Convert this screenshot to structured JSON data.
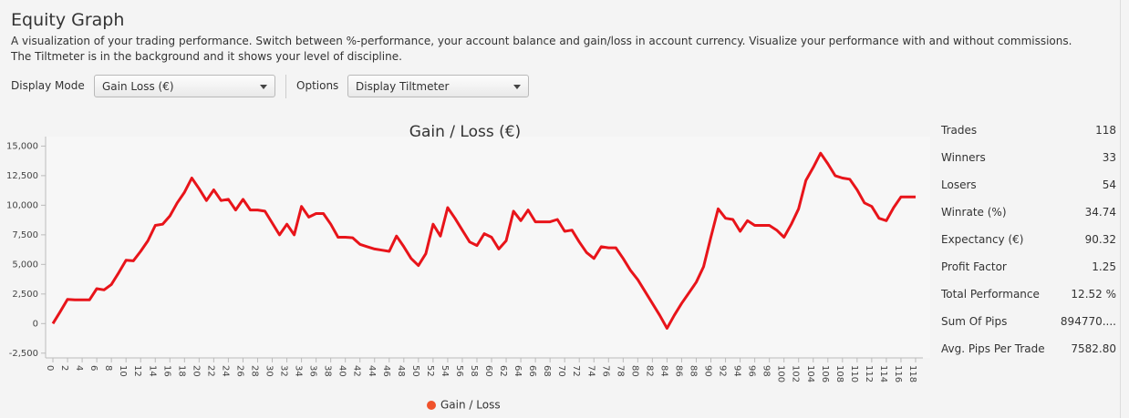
{
  "header": {
    "title": "Equity Graph",
    "description_lines": [
      "A visualization of your trading performance. Switch between %-performance, your account balance and gain/loss in account currency. Visualize your performance with and without commissions.",
      "The Tiltmeter is in the background and it shows your level of discipline."
    ]
  },
  "controls": {
    "display_mode_label": "Display Mode",
    "display_mode_value": "Gain Loss (€)",
    "options_label": "Options",
    "options_value": "Display Tiltmeter"
  },
  "chart_data": {
    "type": "line",
    "title": "Gain / Loss (€)",
    "grid": false,
    "legend": "bottom",
    "x": [
      0,
      1,
      2,
      3,
      4,
      5,
      6,
      7,
      8,
      9,
      10,
      11,
      12,
      13,
      14,
      15,
      16,
      17,
      18,
      19,
      20,
      21,
      22,
      23,
      24,
      25,
      26,
      27,
      28,
      29,
      30,
      31,
      32,
      33,
      34,
      35,
      36,
      37,
      38,
      39,
      40,
      41,
      42,
      43,
      44,
      45,
      46,
      47,
      48,
      49,
      50,
      51,
      52,
      53,
      54,
      55,
      56,
      57,
      58,
      59,
      60,
      61,
      62,
      63,
      64,
      65,
      66,
      67,
      68,
      69,
      70,
      71,
      72,
      73,
      74,
      75,
      76,
      77,
      78,
      79,
      80,
      81,
      82,
      83,
      84,
      85,
      86,
      87,
      88,
      89,
      90,
      91,
      92,
      93,
      94,
      95,
      96,
      97,
      98,
      99,
      100,
      101,
      102,
      103,
      104,
      105,
      106,
      107,
      108,
      109,
      110,
      111,
      112,
      113,
      114,
      115,
      116,
      117,
      118
    ],
    "series": [
      {
        "name": "Gain / Loss",
        "color": "#e8141a",
        "legend_color": "#f0522b",
        "values": [
          0,
          1000,
          2050,
          2000,
          2000,
          2000,
          2950,
          2850,
          3300,
          4300,
          5350,
          5300,
          6100,
          7000,
          8300,
          8400,
          9100,
          10200,
          11100,
          12300,
          11400,
          10400,
          11300,
          10400,
          10500,
          9600,
          10500,
          9600,
          9600,
          9500,
          8500,
          7500,
          8400,
          7500,
          9900,
          9000,
          9300,
          9300,
          8400,
          7300,
          7300,
          7250,
          6700,
          6500,
          6300,
          6200,
          6100,
          7400,
          6500,
          5500,
          4900,
          5900,
          8400,
          7400,
          9800,
          8900,
          7900,
          6900,
          6600,
          7600,
          7300,
          6300,
          7000,
          9500,
          8700,
          9600,
          8600,
          8600,
          8600,
          8800,
          7800,
          7900,
          6900,
          6000,
          5500,
          6500,
          6400,
          6400,
          5500,
          4500,
          3700,
          2700,
          1700,
          700,
          -400,
          700,
          1700,
          2600,
          3500,
          4800,
          7300,
          9700,
          8900,
          8800,
          7800,
          8700,
          8300,
          8300,
          8300,
          7900,
          7300,
          8400,
          9700,
          12100,
          13200,
          14400,
          13500,
          12500,
          12300,
          12200,
          11300,
          10200,
          9900,
          8900,
          8700,
          9800,
          10700,
          10700,
          10700
        ]
      }
    ],
    "xlim": [
      -1,
      119
    ],
    "xticks": [
      0,
      2,
      4,
      6,
      8,
      10,
      12,
      14,
      16,
      18,
      20,
      22,
      24,
      26,
      28,
      30,
      32,
      34,
      36,
      38,
      40,
      42,
      44,
      46,
      48,
      50,
      52,
      54,
      56,
      58,
      60,
      62,
      64,
      66,
      68,
      70,
      72,
      74,
      76,
      78,
      80,
      82,
      84,
      86,
      88,
      90,
      92,
      94,
      96,
      98,
      100,
      102,
      104,
      106,
      108,
      110,
      112,
      114,
      116,
      118
    ],
    "ylim": [
      -2900,
      15800
    ],
    "yticks": [
      {
        "value": -2500,
        "label": "-2,500"
      },
      0,
      {
        "value": 2500,
        "label": "2,500"
      },
      {
        "value": 5000,
        "label": "5,000"
      },
      {
        "value": 7500,
        "label": "7,500"
      },
      {
        "value": 10000,
        "label": "10,000"
      },
      {
        "value": 12500,
        "label": "12,500"
      },
      {
        "value": 15000,
        "label": "15,000"
      }
    ]
  },
  "stats": [
    [
      "Trades",
      "118"
    ],
    [
      "Winners",
      "33"
    ],
    [
      "Losers",
      "54"
    ],
    [
      "Winrate (%)",
      "34.74"
    ],
    [
      "Expectancy (€)",
      "90.32"
    ],
    [
      "Profit Factor",
      "1.25"
    ],
    [
      "Total Performance",
      "12.52 %"
    ],
    [
      "Sum Of Pips",
      "894770...."
    ],
    [
      "Avg. Pips Per Trade",
      "7582.80"
    ]
  ]
}
